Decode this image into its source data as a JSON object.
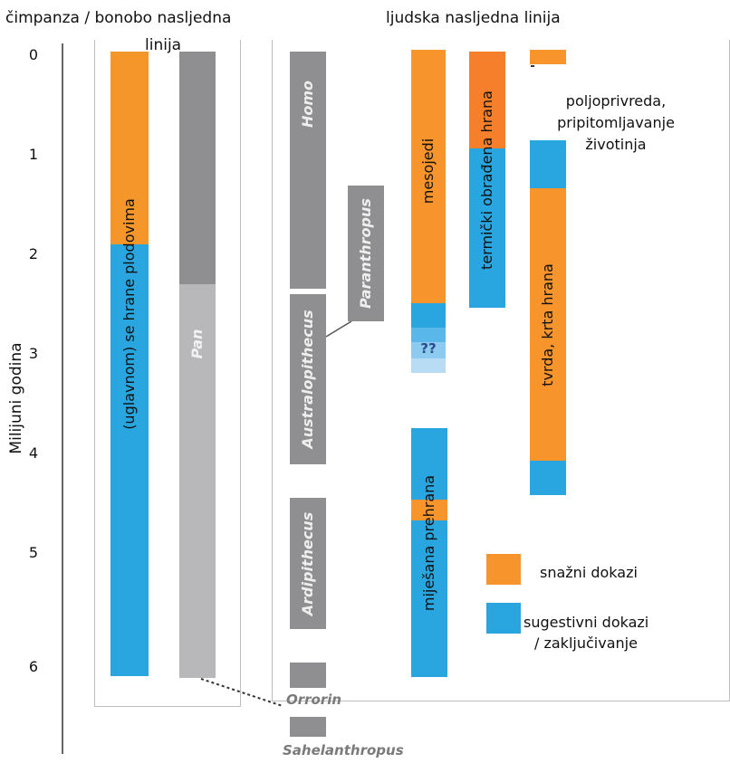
{
  "headers": {
    "left_line1": "čimpanza / bonobo nasljedna",
    "left_line2": "linija",
    "right": "ljudska nasljedna linija"
  },
  "axis": {
    "label": "Milijuni godina",
    "ticks": [
      "0",
      "1",
      "2",
      "3",
      "4",
      "5",
      "6"
    ]
  },
  "chimp_lineage": {
    "diet_label": "(uglavnom) se hrane plodovima",
    "genus_label": "Pan"
  },
  "genera": {
    "homo": "Homo",
    "paranthropus": "Paranthropus",
    "australopithecus": "Australopithecus",
    "ardipithecus": "Ardipithecus",
    "orrorin": "Orrorin",
    "sahelanthropus": "Sahelanthropus"
  },
  "diet_bars": {
    "meat": "mesojedi",
    "cooked": "termički obrađena hrana",
    "hard": "tvrda, krta hrana",
    "mixed": "miješana prehrana",
    "unknown": "??"
  },
  "annotation": {
    "agriculture_line1": "poljoprivreda,",
    "agriculture_line2": "pripitomljavanje",
    "agriculture_line3": "životinja"
  },
  "legend": {
    "strong_label": "snažni dokazi",
    "strong_color": "#f5962a",
    "suggestive_line1": "sugestivni dokazi",
    "suggestive_line2": "/ zaključivanje",
    "suggestive_color": "#29a6e0"
  }
}
